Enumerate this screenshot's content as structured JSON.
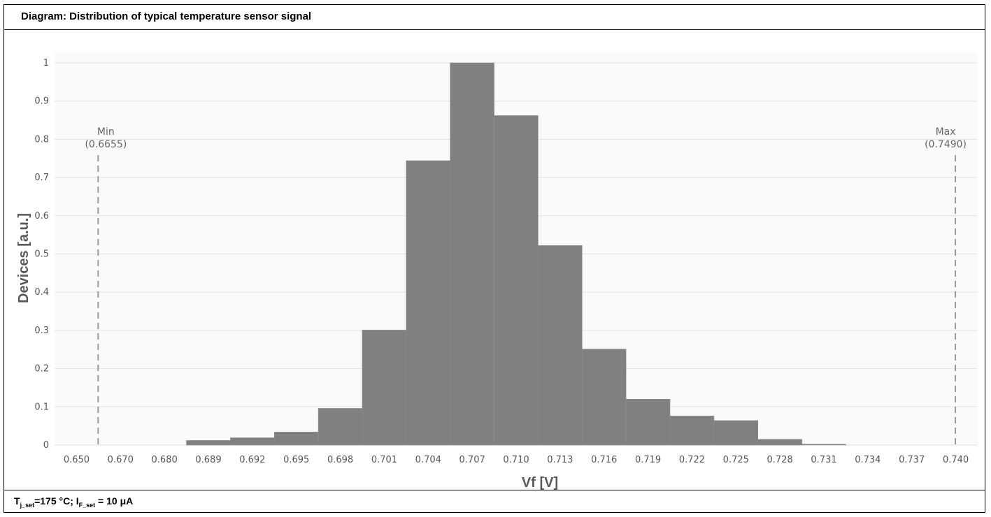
{
  "header": {
    "title": "Diagram: Distribution of typical temperature sensor signal"
  },
  "footer": {
    "tj_main": "T",
    "tj_sub": "j_set",
    "tj_rest": "=175 °C; I",
    "if_sub": "F_set",
    "if_rest": " = 10 μA"
  },
  "chart_data": {
    "type": "bar",
    "title": "Diagram: Distribution of typical temperature sensor signal",
    "xlabel": "Vf [V]",
    "ylabel": "Devices [a.u.]",
    "ylim": [
      0,
      1
    ],
    "yticks": [
      "0",
      "0.1",
      "0.2",
      "0.3",
      "0.4",
      "0.5",
      "0.6",
      "0.7",
      "0.8",
      "0.9",
      "1"
    ],
    "categories": [
      "0.650",
      "0.670",
      "0.680",
      "0.689",
      "0.692",
      "0.695",
      "0.698",
      "0.701",
      "0.704",
      "0.707",
      "0.710",
      "0.713",
      "0.716",
      "0.719",
      "0.722",
      "0.725",
      "0.728",
      "0.731",
      "0.734",
      "0.737",
      "0.740"
    ],
    "values": [
      0,
      0,
      0,
      0.012,
      0.019,
      0.034,
      0.096,
      0.301,
      0.744,
      1.0,
      0.862,
      0.522,
      0.251,
      0.12,
      0.076,
      0.064,
      0.015,
      0.002,
      0,
      0,
      0
    ],
    "grid": true,
    "bar_color": "#808080",
    "markers": [
      {
        "name": "Min",
        "value_label": "(0.6655)",
        "position_category_index": 1
      },
      {
        "name": "Max",
        "value_label": "(0.7490)",
        "position_category_index": 20.5
      }
    ]
  }
}
